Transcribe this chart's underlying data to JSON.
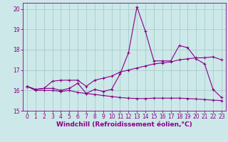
{
  "title": "",
  "xlabel": "Windchill (Refroidissement éolien,°C)",
  "bg_color": "#cce8e8",
  "grid_color": "#aacccc",
  "line_color": "#880088",
  "xlim": [
    -0.5,
    23.5
  ],
  "ylim": [
    15.0,
    20.3
  ],
  "xticks": [
    0,
    1,
    2,
    3,
    4,
    5,
    6,
    7,
    8,
    9,
    10,
    11,
    12,
    13,
    14,
    15,
    16,
    17,
    18,
    19,
    20,
    21,
    22,
    23
  ],
  "yticks": [
    15,
    16,
    17,
    18,
    19,
    20
  ],
  "x": [
    0,
    1,
    2,
    3,
    4,
    5,
    6,
    7,
    8,
    9,
    10,
    11,
    12,
    13,
    14,
    15,
    16,
    17,
    18,
    19,
    20,
    21,
    22,
    23
  ],
  "line1": [
    16.2,
    16.05,
    16.1,
    16.1,
    16.0,
    16.1,
    16.35,
    15.85,
    16.05,
    15.95,
    16.05,
    16.8,
    17.85,
    20.1,
    18.9,
    17.45,
    17.45,
    17.45,
    18.2,
    18.1,
    17.55,
    17.3,
    16.05,
    15.65
  ],
  "line2": [
    16.2,
    16.05,
    16.1,
    16.45,
    16.5,
    16.5,
    16.5,
    16.2,
    16.5,
    16.6,
    16.7,
    16.9,
    17.0,
    17.1,
    17.2,
    17.3,
    17.35,
    17.4,
    17.5,
    17.55,
    17.6,
    17.6,
    17.65,
    17.5
  ],
  "line3": [
    16.2,
    16.0,
    16.0,
    16.0,
    15.95,
    16.0,
    15.9,
    15.85,
    15.8,
    15.75,
    15.7,
    15.65,
    15.62,
    15.6,
    15.6,
    15.62,
    15.62,
    15.62,
    15.62,
    15.6,
    15.58,
    15.55,
    15.52,
    15.5
  ],
  "markersize": 2.0,
  "linewidth": 0.8,
  "tick_fontsize": 5.5,
  "xlabel_fontsize": 6.5
}
